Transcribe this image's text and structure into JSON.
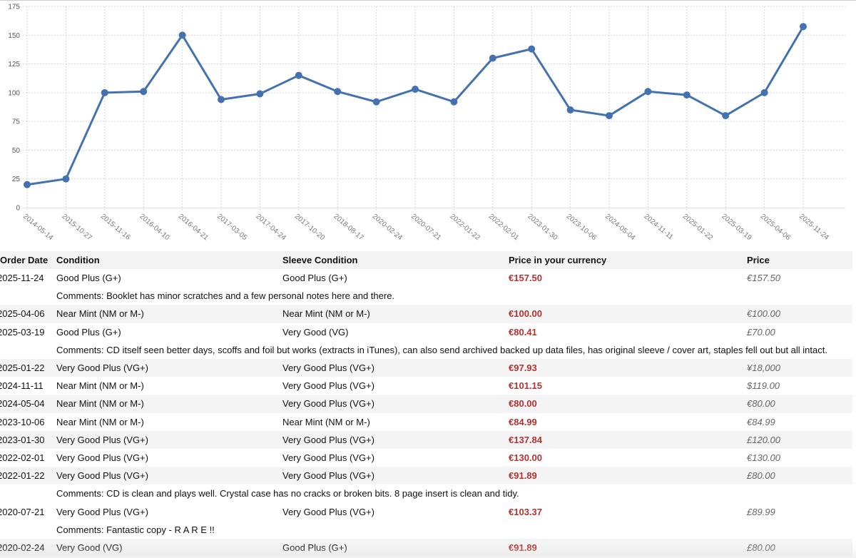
{
  "chart_data": {
    "type": "line",
    "x": [
      "2014-05-14",
      "2015-10-27",
      "2015-11-16",
      "2016-04-10",
      "2016-04-21",
      "2017-03-05",
      "2017-04-24",
      "2017-10-20",
      "2018-08-17",
      "2020-02-24",
      "2020-07-21",
      "2022-01-22",
      "2022-02-01",
      "2023-01-30",
      "2023-10-06",
      "2024-05-04",
      "2024-11-11",
      "2025-01-22",
      "2025-03-19",
      "2025-04-06",
      "2025-11-24"
    ],
    "series": [
      {
        "values": [
          20,
          25,
          100,
          101,
          150,
          94,
          99,
          115,
          101,
          92,
          103,
          92,
          130,
          138,
          85,
          80,
          101,
          98,
          80,
          100,
          157.5
        ]
      }
    ],
    "yticks": [
      0,
      25,
      50,
      75,
      100,
      125,
      150,
      175
    ],
    "ylim": [
      0,
      175
    ],
    "grid": true,
    "line_color": "#4472b0",
    "title": "",
    "xlabel": "",
    "ylabel": ""
  },
  "table": {
    "headers": [
      "Order Date",
      "Condition",
      "Sleeve Condition",
      "Price in your currency",
      "Price"
    ],
    "rows": [
      {
        "type": "order",
        "date": "2025-11-24",
        "condition": "Good Plus (G+)",
        "sleeve": "Good Plus (G+)",
        "price_local": "€157.50",
        "price": "€157.50",
        "alt": false
      },
      {
        "type": "comment",
        "text": "Comments: Booklet has minor scratches and a few personal notes here and there.",
        "alt": false
      },
      {
        "type": "order",
        "date": "2025-04-06",
        "condition": "Near Mint (NM or M-)",
        "sleeve": "Near Mint (NM or M-)",
        "price_local": "€100.00",
        "price": "€100.00",
        "alt": true
      },
      {
        "type": "order",
        "date": "2025-03-19",
        "condition": "Good Plus (G+)",
        "sleeve": "Very Good (VG)",
        "price_local": "€80.41",
        "price": "£70.00",
        "alt": false
      },
      {
        "type": "comment",
        "text": "Comments: CD itself seen better days, scoffs and foil but works (extracts in iTunes), can also send archived backed up data files, has original sleeve / cover art, staples fell out but all intact.",
        "alt": false
      },
      {
        "type": "order",
        "date": "2025-01-22",
        "condition": "Very Good Plus (VG+)",
        "sleeve": "Very Good Plus (VG+)",
        "price_local": "€97.93",
        "price": "¥18,000",
        "alt": true
      },
      {
        "type": "order",
        "date": "2024-11-11",
        "condition": "Near Mint (NM or M-)",
        "sleeve": "Very Good Plus (VG+)",
        "price_local": "€101.15",
        "price": "$119.00",
        "alt": false
      },
      {
        "type": "order",
        "date": "2024-05-04",
        "condition": "Near Mint (NM or M-)",
        "sleeve": "Very Good Plus (VG+)",
        "price_local": "€80.00",
        "price": "€80.00",
        "alt": true
      },
      {
        "type": "order",
        "date": "2023-10-06",
        "condition": "Near Mint (NM or M-)",
        "sleeve": "Near Mint (NM or M-)",
        "price_local": "€84.99",
        "price": "€84.99",
        "alt": false
      },
      {
        "type": "order",
        "date": "2023-01-30",
        "condition": "Very Good Plus (VG+)",
        "sleeve": "Very Good Plus (VG+)",
        "price_local": "€137.84",
        "price": "£120.00",
        "alt": true
      },
      {
        "type": "order",
        "date": "2022-02-01",
        "condition": "Very Good Plus (VG+)",
        "sleeve": "Very Good Plus (VG+)",
        "price_local": "€130.00",
        "price": "€130.00",
        "alt": false
      },
      {
        "type": "order",
        "date": "2022-01-22",
        "condition": "Very Good Plus (VG+)",
        "sleeve": "Very Good Plus (VG+)",
        "price_local": "€91.89",
        "price": "£80.00",
        "alt": true
      },
      {
        "type": "comment",
        "text": "Comments: CD is clean and plays well. Crystal case has no cracks or broken bits. 8 page insert is clean and tidy.",
        "alt": false
      },
      {
        "type": "order",
        "date": "2020-07-21",
        "condition": "Very Good Plus (VG+)",
        "sleeve": "Very Good Plus (VG+)",
        "price_local": "€103.37",
        "price": "£89.99",
        "alt": false
      },
      {
        "type": "comment",
        "text": "Comments: Fantastic copy - R A R E !!",
        "alt": false
      },
      {
        "type": "order",
        "date": "2020-02-24",
        "condition": "Very Good (VG)",
        "sleeve": "Good Plus (G+)",
        "price_local": "€91.89",
        "price": "£80.00",
        "alt": true
      }
    ]
  }
}
